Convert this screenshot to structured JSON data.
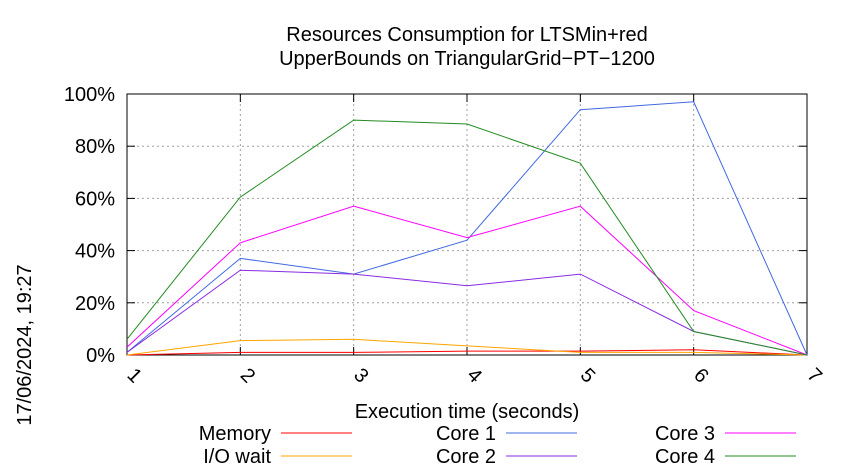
{
  "chart_data": {
    "type": "line",
    "title": "Resources Consumption for LTSMin+red",
    "subtitle": "UpperBounds on TriangularGrid−PT−1200",
    "xlabel": "Execution time (seconds)",
    "ylabel": "",
    "side_label": "17/06/2024, 19:27",
    "xlim": [
      1,
      7
    ],
    "ylim": [
      0,
      100
    ],
    "x_ticks": [
      "1",
      "2",
      "3",
      "4",
      "5",
      "6",
      "7"
    ],
    "y_ticks": [
      "0%",
      "20%",
      "40%",
      "60%",
      "80%",
      "100%"
    ],
    "grid": true,
    "legend_position": "bottom",
    "x": [
      1,
      2,
      3,
      4,
      5,
      6,
      7
    ],
    "series": [
      {
        "name": "Memory",
        "color": "#ff0000",
        "values": [
          0,
          1,
          1,
          1.5,
          1.5,
          2,
          0
        ]
      },
      {
        "name": "I/O wait",
        "color": "#ffa500",
        "values": [
          0,
          5.5,
          6,
          3.5,
          1,
          1,
          0
        ]
      },
      {
        "name": "Core 1",
        "color": "#4169e1",
        "values": [
          1,
          37,
          31,
          44,
          94,
          97,
          0
        ]
      },
      {
        "name": "Core 2",
        "color": "#8a2be2",
        "values": [
          1,
          32.5,
          31,
          26.5,
          31,
          9,
          0
        ]
      },
      {
        "name": "Core 3",
        "color": "#ff00ff",
        "values": [
          3,
          43,
          57,
          45,
          57,
          17,
          0
        ]
      },
      {
        "name": "Core 4",
        "color": "#228b22",
        "values": [
          6,
          60.5,
          90,
          88.5,
          73.5,
          9,
          0
        ]
      }
    ]
  }
}
